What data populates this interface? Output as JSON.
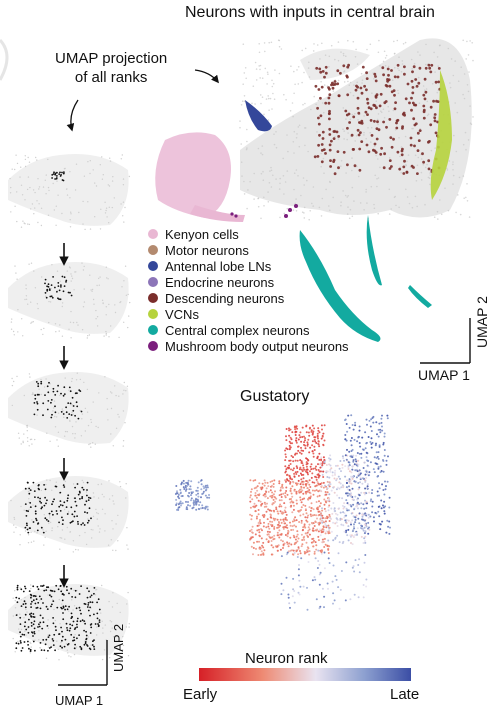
{
  "title": "Neurons with inputs in central brain",
  "projection_note_line1": "UMAP projection",
  "projection_note_line2": "of all ranks",
  "legend": [
    {
      "label": "Kenyon cells",
      "color": "#e9b7d3"
    },
    {
      "label": "Motor neurons",
      "color": "#b38a6f"
    },
    {
      "label": "Antennal lobe LNs",
      "color": "#34479a"
    },
    {
      "label": "Endocrine neurons",
      "color": "#8c75b8"
    },
    {
      "label": "Descending neurons",
      "color": "#7a2d2b"
    },
    {
      "label": "VCNs",
      "color": "#b6d33d"
    },
    {
      "label": "Central complex neurons",
      "color": "#13aaa0"
    },
    {
      "label": "Mushroom body output neurons",
      "color": "#7b1f7d"
    }
  ],
  "axes_main": {
    "x": "UMAP 1",
    "y": "UMAP 2"
  },
  "axes_small": {
    "x": "UMAP 1",
    "y": "UMAP 2"
  },
  "gustatory_title": "Gustatory",
  "colorbar": {
    "title": "Neuron rank",
    "left": "Early",
    "right": "Late",
    "left_color": "#d62027",
    "right_color": "#3b4ea5"
  }
}
